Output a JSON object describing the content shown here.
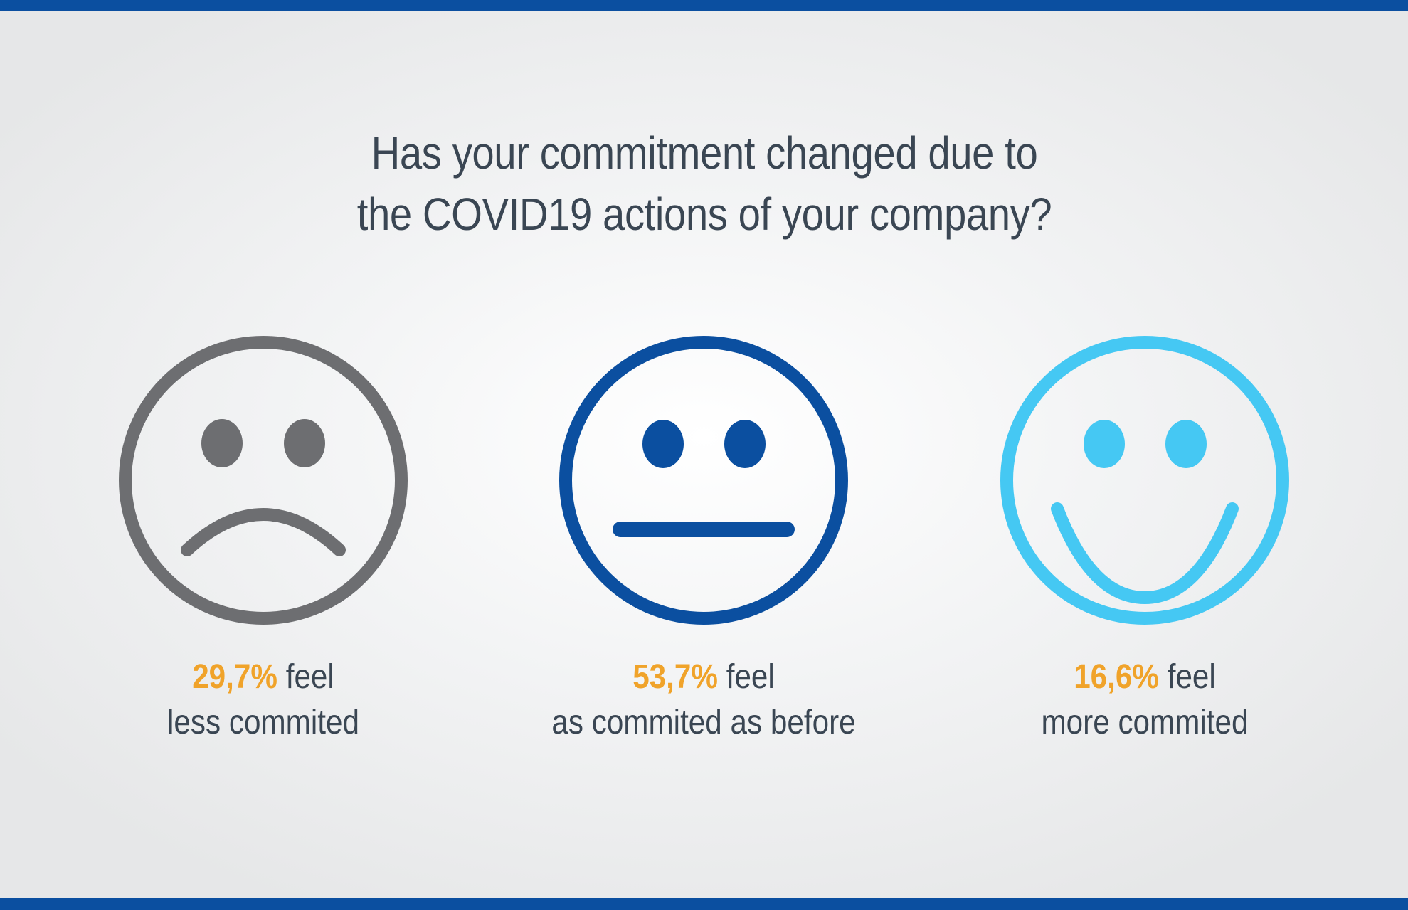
{
  "title": {
    "line1": "Has your commitment changed due to",
    "line2": "the COVID19 actions of your company?"
  },
  "colors": {
    "bar": "#0b4fa0",
    "title_text": "#3a4653",
    "percent": "#f0a32a",
    "sad_face": "#6d6e71",
    "neutral_face": "#0b4fa0",
    "happy_face": "#45c8f3"
  },
  "answers": [
    {
      "icon": "sad-face-icon",
      "percent": "29,7%",
      "value_percent": 29.7,
      "suffix": "feel",
      "line2": "less commited"
    },
    {
      "icon": "neutral-face-icon",
      "percent": "53,7%",
      "value_percent": 53.7,
      "suffix": "feel",
      "line2": "as commited as before"
    },
    {
      "icon": "happy-face-icon",
      "percent": "16,6%",
      "value_percent": 16.6,
      "suffix": "feel",
      "line2": "more commited"
    }
  ]
}
